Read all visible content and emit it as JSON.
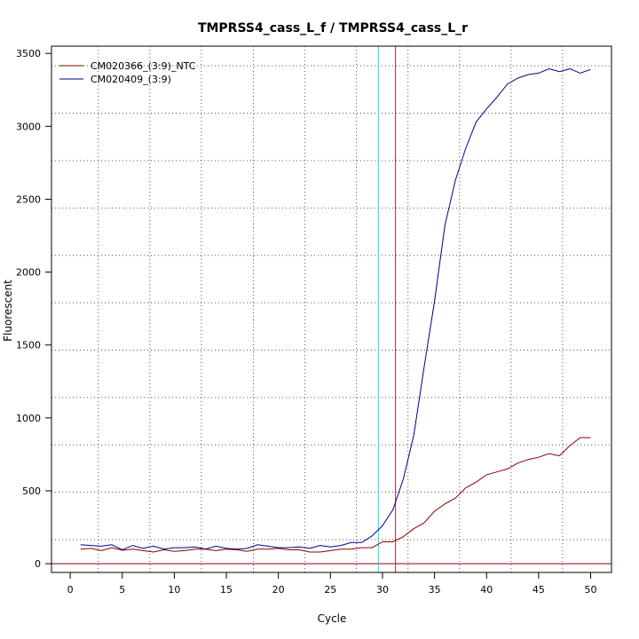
{
  "chart_data": {
    "type": "line",
    "title": "TMPRSS4_cass_L_f / TMPRSS4_cass_L_r",
    "xlabel": "Cycle",
    "ylabel": "Fluorescent",
    "xlim": [
      -1.8,
      52
    ],
    "ylim": [
      -60,
      3550
    ],
    "xticks": [
      0,
      5,
      10,
      15,
      20,
      25,
      30,
      35,
      40,
      45,
      50
    ],
    "yticks": [
      0,
      500,
      1000,
      1500,
      2000,
      2500,
      3000,
      3500
    ],
    "grid": true,
    "legend": "top-left",
    "vertical_gridlines": [
      2.7,
      7.65,
      12.6,
      17.6,
      22.55,
      27.5,
      32.45,
      37.4,
      42.35,
      47.3
    ],
    "horizontal_gridlines": [
      165,
      490,
      815,
      1140,
      1465,
      1790,
      2115,
      2440,
      2765,
      3090,
      3415
    ],
    "baseline": {
      "y": 0,
      "color": "#8b0000"
    },
    "threshold_lines": [
      {
        "x": 29.6,
        "color": "#00e5ee"
      },
      {
        "x": 31.25,
        "color": "#a52a2a"
      }
    ],
    "series": [
      {
        "name": "CM020366_(3:9)_NTC",
        "color": "#8b0000",
        "x": [
          1,
          2,
          3,
          4,
          5,
          6,
          7,
          8,
          9,
          10,
          11,
          12,
          13,
          14,
          15,
          16,
          17,
          18,
          19,
          20,
          21,
          22,
          23,
          24,
          25,
          26,
          27,
          28,
          29,
          30,
          31,
          32,
          33,
          34,
          35,
          36,
          37,
          38,
          39,
          40,
          41,
          42,
          43,
          44,
          45,
          46,
          47,
          48,
          49,
          50
        ],
        "values": [
          100,
          105,
          90,
          110,
          92,
          100,
          90,
          80,
          95,
          85,
          90,
          100,
          100,
          90,
          100,
          95,
          85,
          100,
          100,
          105,
          95,
          95,
          80,
          80,
          90,
          100,
          100,
          110,
          110,
          150,
          150,
          185,
          240,
          280,
          360,
          410,
          450,
          520,
          560,
          610,
          630,
          650,
          690,
          715,
          730,
          755,
          740,
          810,
          865,
          865
        ]
      },
      {
        "name": "CM020409_(3:9)",
        "color": "#00008b",
        "x": [
          1,
          2,
          3,
          4,
          5,
          6,
          7,
          8,
          9,
          10,
          11,
          12,
          13,
          14,
          15,
          16,
          17,
          18,
          19,
          20,
          21,
          22,
          23,
          24,
          25,
          26,
          27,
          28,
          29,
          30,
          31,
          32,
          33,
          34,
          35,
          36,
          37,
          38,
          39,
          40,
          41,
          42,
          43,
          44,
          45,
          46,
          47,
          48,
          49,
          50
        ],
        "values": [
          130,
          125,
          120,
          130,
          95,
          125,
          105,
          120,
          100,
          110,
          110,
          115,
          100,
          120,
          105,
          100,
          105,
          130,
          120,
          110,
          110,
          115,
          105,
          125,
          115,
          125,
          145,
          145,
          190,
          260,
          370,
          580,
          880,
          1350,
          1800,
          2320,
          2630,
          2850,
          3030,
          3120,
          3200,
          3290,
          3330,
          3355,
          3365,
          3395,
          3375,
          3395,
          3365,
          3390
        ]
      }
    ]
  }
}
